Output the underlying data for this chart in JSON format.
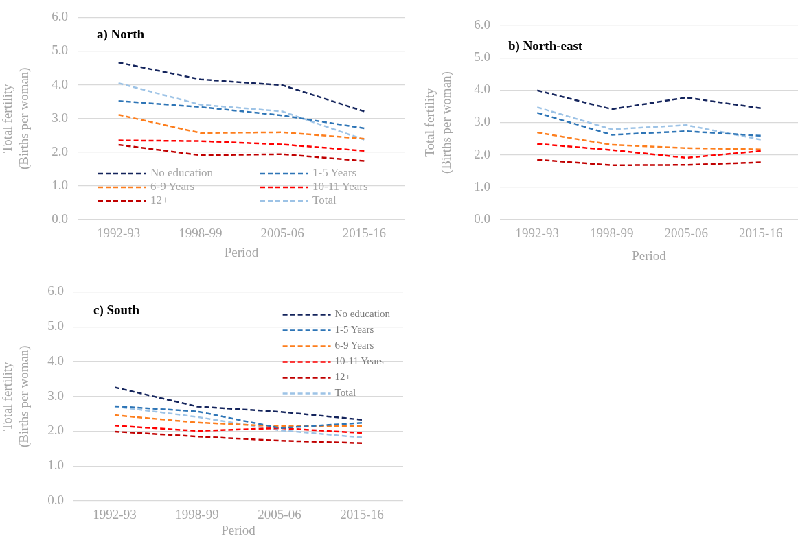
{
  "chart_data": [
    {
      "type": "line",
      "title": "a) North",
      "xlabel": "Period",
      "ylabel": "Total fertility\n(Births per woman)",
      "categories": [
        "1992-93",
        "1998-99",
        "2005-06",
        "2015-16"
      ],
      "series": [
        {
          "name": "No education",
          "color": "#14245c",
          "values": [
            4.66,
            4.16,
            3.99,
            3.21
          ]
        },
        {
          "name": "1-5 Years",
          "color": "#2e75b6",
          "values": [
            3.52,
            3.34,
            3.09,
            2.71
          ]
        },
        {
          "name": "6-9 Years",
          "color": "#fd7e1d",
          "values": [
            3.11,
            2.57,
            2.59,
            2.4
          ]
        },
        {
          "name": "10-11 Years",
          "color": "#ff0000",
          "values": [
            2.35,
            2.33,
            2.23,
            2.04
          ]
        },
        {
          "name": "12+",
          "color": "#c00000",
          "values": [
            2.22,
            1.91,
            1.94,
            1.74
          ]
        },
        {
          "name": "Total",
          "color": "#9dc3e6",
          "values": [
            4.05,
            3.41,
            3.21,
            2.37
          ]
        }
      ],
      "ylim": [
        0,
        6
      ],
      "yticks": [
        {
          "value": 0,
          "label": "0.0"
        },
        {
          "value": 1,
          "label": "1.0"
        },
        {
          "value": 2,
          "label": "2.0"
        },
        {
          "value": 3,
          "label": "3.0"
        },
        {
          "value": 4,
          "label": "4.0"
        },
        {
          "value": 5,
          "label": "5.0"
        },
        {
          "value": 6,
          "label": "6.0"
        }
      ],
      "grid": "y",
      "legend": "bottom",
      "line_style": "dashed"
    },
    {
      "type": "line",
      "title": "b) North-east",
      "xlabel": "Period",
      "ylabel": "Total fertility\n(Births per woman)",
      "categories": [
        "1992-93",
        "1998-99",
        "2005-06",
        "2015-16"
      ],
      "series": [
        {
          "color": "#14245c",
          "values": [
            3.99,
            3.41,
            3.77,
            3.44
          ]
        },
        {
          "color": "#2e75b6",
          "values": [
            3.3,
            2.62,
            2.73,
            2.59
          ]
        },
        {
          "color": "#fd7e1d",
          "values": [
            2.69,
            2.31,
            2.21,
            2.17
          ]
        },
        {
          "color": "#ff0000",
          "values": [
            2.34,
            2.15,
            1.91,
            2.12
          ]
        },
        {
          "color": "#c00000",
          "values": [
            1.85,
            1.68,
            1.69,
            1.77
          ]
        },
        {
          "color": "#9dc3e6",
          "values": [
            3.47,
            2.79,
            2.92,
            2.47
          ]
        }
      ],
      "ylim": [
        0,
        6
      ],
      "yticks": [
        {
          "value": 0,
          "label": "0.0"
        },
        {
          "value": 1,
          "label": "1.0"
        },
        {
          "value": 2,
          "label": "2.0"
        },
        {
          "value": 3,
          "label": "3.0"
        },
        {
          "value": 4,
          "label": "4.0"
        },
        {
          "value": 5,
          "label": "5.0"
        },
        {
          "value": 6,
          "label": "6.0"
        }
      ],
      "grid": "y",
      "line_style": "dashed"
    },
    {
      "type": "line",
      "title": "c) South",
      "xlabel": "Period",
      "ylabel": "Total fertility\n(Births per woman)",
      "categories": [
        "1992-93",
        "1998-99",
        "2005-06",
        "2015-16"
      ],
      "series": [
        {
          "name": "No education",
          "color": "#14245c",
          "values": [
            3.26,
            2.71,
            2.56,
            2.33
          ]
        },
        {
          "name": "1-5 Years",
          "color": "#2e75b6",
          "values": [
            2.72,
            2.57,
            2.09,
            2.24
          ]
        },
        {
          "name": "6-9 Years",
          "color": "#fd7e1d",
          "values": [
            2.46,
            2.25,
            2.14,
            2.14
          ]
        },
        {
          "name": "10-11 Years",
          "color": "#ff0000",
          "values": [
            2.16,
            2.01,
            2.09,
            1.95
          ]
        },
        {
          "name": "12+",
          "color": "#c00000",
          "values": [
            1.99,
            1.85,
            1.73,
            1.66
          ]
        },
        {
          "name": "Total",
          "color": "#9dc3e6",
          "values": [
            2.71,
            2.41,
            2.03,
            1.82
          ]
        }
      ],
      "ylim": [
        0,
        6
      ],
      "yticks": [
        {
          "value": 0,
          "label": "0.0"
        },
        {
          "value": 1,
          "label": "1.0"
        },
        {
          "value": 2,
          "label": "2.0"
        },
        {
          "value": 3,
          "label": "3.0"
        },
        {
          "value": 4,
          "label": "4.0"
        },
        {
          "value": 5,
          "label": "5.0"
        },
        {
          "value": 6,
          "label": "6.0"
        }
      ],
      "grid": "y",
      "legend": "top right",
      "line_style": "dashed"
    }
  ]
}
